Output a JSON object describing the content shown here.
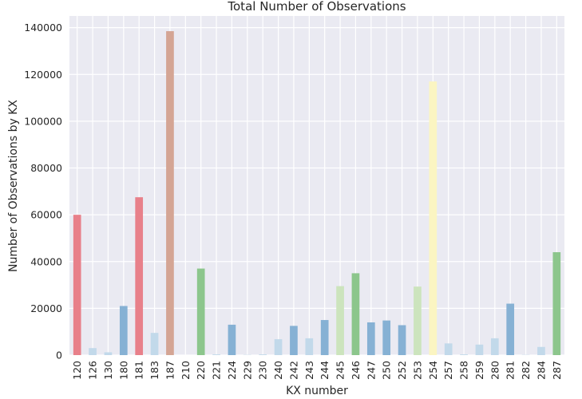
{
  "chart_data": {
    "type": "bar",
    "title": "Total Number of Observations",
    "xlabel": "KX number",
    "ylabel": "Number of Observations by KX",
    "ylim": [
      0,
      145000
    ],
    "yticks": [
      0,
      20000,
      40000,
      60000,
      80000,
      100000,
      120000,
      140000
    ],
    "grid": true,
    "categories": [
      "120",
      "126",
      "130",
      "180",
      "181",
      "183",
      "187",
      "210",
      "220",
      "221",
      "224",
      "229",
      "230",
      "240",
      "242",
      "243",
      "244",
      "245",
      "246",
      "247",
      "250",
      "252",
      "253",
      "254",
      "257",
      "258",
      "259",
      "280",
      "281",
      "282",
      "284",
      "287"
    ],
    "values": [
      60000,
      3000,
      1200,
      21000,
      67500,
      9500,
      138500,
      0,
      37000,
      300,
      13000,
      100,
      300,
      6800,
      12500,
      7200,
      15000,
      29500,
      35000,
      14000,
      14800,
      12800,
      29300,
      117000,
      5000,
      300,
      4500,
      7200,
      22000,
      100,
      3500,
      44000
    ],
    "colors": [
      "#e8808a",
      "#c2d9ea",
      "#c2d9ea",
      "#86b1d4",
      "#e8808a",
      "#c2d9ea",
      "#d4a594",
      "#c2d9ea",
      "#8cc68c",
      "#c2d9ea",
      "#86b1d4",
      "#c2d9ea",
      "#c2d9ea",
      "#c2d9ea",
      "#86b1d4",
      "#c2d9ea",
      "#86b1d4",
      "#cce4bd",
      "#8cc68c",
      "#86b1d4",
      "#86b1d4",
      "#86b1d4",
      "#cce4bd",
      "#fbf5c2",
      "#c2d9ea",
      "#c2d9ea",
      "#c2d9ea",
      "#c2d9ea",
      "#86b1d4",
      "#c2d9ea",
      "#c2d9ea",
      "#8cc68c"
    ]
  }
}
